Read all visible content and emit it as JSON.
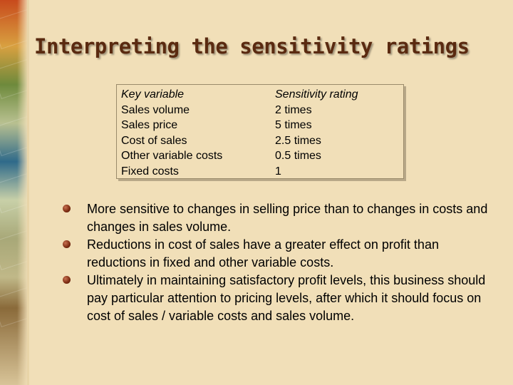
{
  "slide": {
    "title": "Interpreting the sensitivity ratings"
  },
  "table": {
    "header_variable": "Key variable",
    "header_rating": "Sensitivity rating",
    "rows": [
      {
        "variable": "Sales volume",
        "rating": "2 times"
      },
      {
        "variable": "Sales price",
        "rating": "5 times"
      },
      {
        "variable": "Cost of sales",
        "rating": "2.5 times"
      },
      {
        "variable": "Other variable costs",
        "rating": "0.5 times"
      },
      {
        "variable": "Fixed costs",
        "rating": "1"
      }
    ]
  },
  "bullets": [
    "More sensitive to changes in selling price than to changes in costs and changes in sales volume.",
    "Reductions in cost of sales have a greater effect on profit than reductions in fixed and other variable costs.",
    "Ultimately in maintaining satisfactory profit levels, this business should pay particular attention to pricing levels, after which it should focus on cost of sales / variable costs and sales volume."
  ],
  "colors": {
    "background": "#f1dfb8",
    "title": "#5a2a10",
    "bullet": "#7a2a10"
  },
  "icons": {
    "bullet": "round-bullet-icon",
    "decoration": "banknotes-image"
  }
}
